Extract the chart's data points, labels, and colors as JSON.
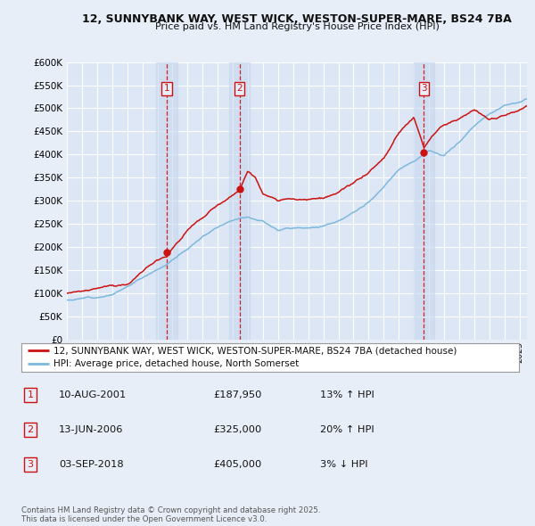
{
  "title1": "12, SUNNYBANK WAY, WEST WICK, WESTON-SUPER-MARE, BS24 7BA",
  "title2": "Price paid vs. HM Land Registry's House Price Index (HPI)",
  "background_color": "#e8eef8",
  "plot_bg_color": "#dce6f5",
  "grid_color": "#ffffff",
  "legend_entry1": "12, SUNNYBANK WAY, WEST WICK, WESTON-SUPER-MARE, BS24 7BA (detached house)",
  "legend_entry2": "HPI: Average price, detached house, North Somerset",
  "footer": "Contains HM Land Registry data © Crown copyright and database right 2025.\nThis data is licensed under the Open Government Licence v3.0.",
  "sale_markers": [
    {
      "num": 1,
      "year": 2001.61,
      "price": 187950,
      "label": "10-AUG-2001",
      "amount": "£187,950",
      "change": "13% ↑ HPI"
    },
    {
      "num": 2,
      "year": 2006.44,
      "price": 325000,
      "label": "13-JUN-2006",
      "amount": "£325,000",
      "change": "20% ↑ HPI"
    },
    {
      "num": 3,
      "year": 2018.67,
      "price": 405000,
      "label": "03-SEP-2018",
      "amount": "£405,000",
      "change": "3% ↓ HPI"
    }
  ],
  "xmin": 1995,
  "xmax": 2025.5,
  "ymin": 0,
  "ymax": 600000,
  "yticks": [
    0,
    50000,
    100000,
    150000,
    200000,
    250000,
    300000,
    350000,
    400000,
    450000,
    500000,
    550000,
    600000
  ],
  "hpi_anchors_x": [
    1995,
    1996,
    1997,
    1998,
    1999,
    2000,
    2001,
    2002,
    2003,
    2004,
    2005,
    2006,
    2007,
    2008,
    2009,
    2010,
    2011,
    2012,
    2013,
    2014,
    2015,
    2016,
    2017,
    2018,
    2019,
    2020,
    2021,
    2022,
    2023,
    2024,
    2025.5
  ],
  "hpi_anchors_y": [
    85000,
    88000,
    93000,
    100000,
    115000,
    135000,
    155000,
    175000,
    200000,
    225000,
    248000,
    265000,
    275000,
    265000,
    248000,
    252000,
    255000,
    258000,
    270000,
    285000,
    305000,
    335000,
    370000,
    390000,
    415000,
    400000,
    430000,
    465000,
    490000,
    510000,
    520000
  ],
  "price_anchors_x": [
    1995,
    1997,
    1999,
    2001,
    2001.61,
    2003,
    2005,
    2006.44,
    2007.0,
    2007.5,
    2008,
    2009,
    2010,
    2011,
    2012,
    2013,
    2014,
    2015,
    2016,
    2017,
    2018,
    2018.67,
    2019.2,
    2020,
    2021,
    2022,
    2023,
    2024,
    2025.5
  ],
  "price_anchors_y": [
    100000,
    108000,
    120000,
    175000,
    187950,
    245000,
    295000,
    325000,
    368000,
    355000,
    320000,
    300000,
    305000,
    308000,
    310000,
    318000,
    335000,
    355000,
    385000,
    440000,
    475000,
    405000,
    430000,
    455000,
    470000,
    490000,
    470000,
    480000,
    505000
  ]
}
